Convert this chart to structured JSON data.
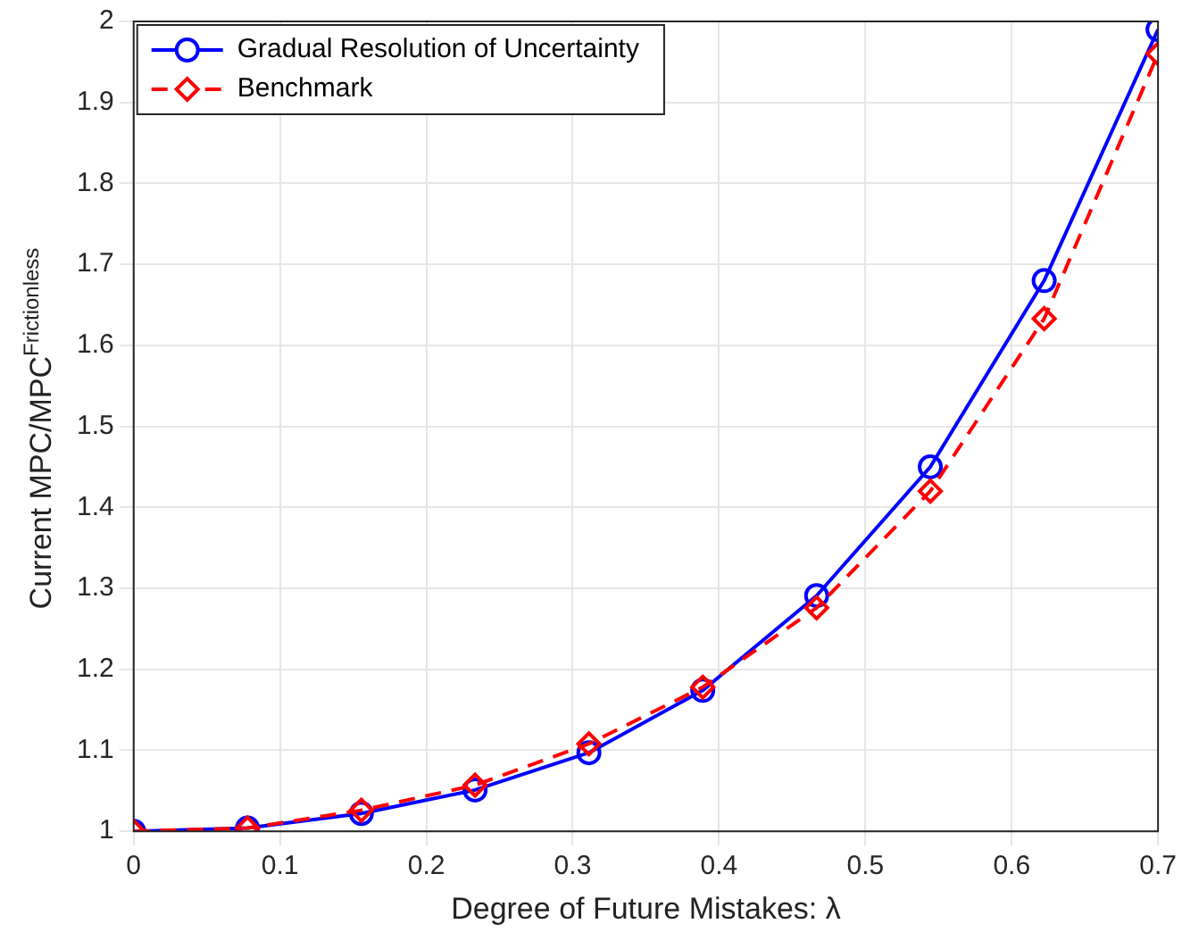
{
  "chart_data": {
    "type": "line",
    "xlabel": "Degree of Future Mistakes: λ",
    "ylabel": "Current MPC/MPC$^{Frictionless}$",
    "x": [
      0,
      0.0778,
      0.1556,
      0.2333,
      0.3111,
      0.3889,
      0.4667,
      0.5444,
      0.6222,
      0.7
    ],
    "series": [
      {
        "name": "Gradual Resolution of Uncertainty",
        "color": "#0000ff",
        "marker": "circle",
        "line_style": "solid",
        "values": [
          1.0,
          1.004,
          1.022,
          1.051,
          1.097,
          1.174,
          1.291,
          1.45,
          1.68,
          1.99
        ]
      },
      {
        "name": "Benchmark",
        "color": "#ff0000",
        "marker": "diamond",
        "line_style": "dashed",
        "values": [
          1.0,
          1.004,
          1.026,
          1.057,
          1.108,
          1.178,
          1.276,
          1.42,
          1.633,
          1.96
        ]
      }
    ],
    "xlim": [
      0,
      0.7
    ],
    "xticks": [
      0,
      0.1,
      0.2,
      0.3,
      0.4,
      0.5,
      0.6,
      0.7
    ],
    "ylim": [
      1,
      2
    ],
    "yticks": [
      1,
      1.1,
      1.2,
      1.3,
      1.4,
      1.5,
      1.6,
      1.7,
      1.8,
      1.9,
      2
    ],
    "grid": true,
    "legend": "top left"
  }
}
